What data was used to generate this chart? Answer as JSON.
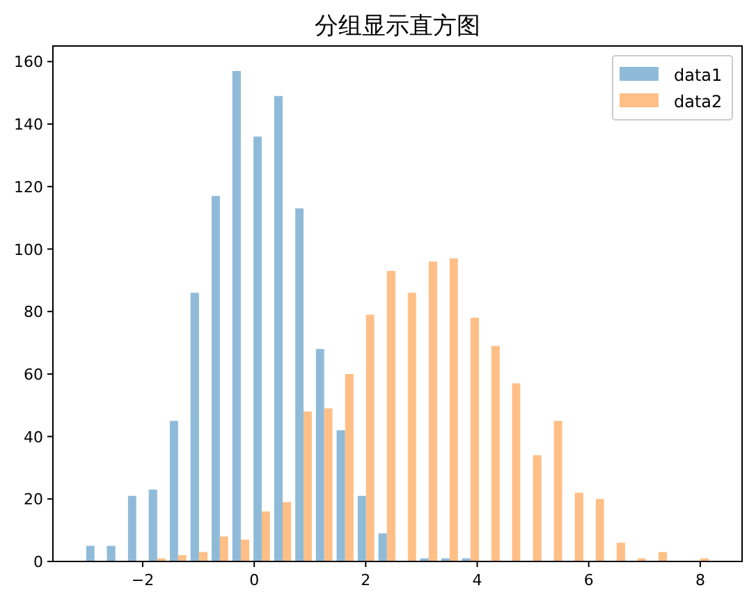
{
  "chart_data": {
    "type": "histogram",
    "title": "分组显示直方图",
    "bins": [
      -3.05,
      -2.68,
      -2.3,
      -1.93,
      -1.55,
      -1.18,
      -0.8,
      -0.43,
      -0.05,
      0.32,
      0.7,
      1.07,
      1.44,
      1.82,
      2.19,
      2.57,
      2.94,
      3.32,
      3.69,
      4.07,
      4.44,
      4.81,
      5.19,
      5.56,
      5.94,
      6.31,
      6.69,
      7.06,
      7.44,
      7.81,
      8.19
    ],
    "series": [
      {
        "name": "data1",
        "color": "#8fbbd9",
        "values": [
          5,
          5,
          21,
          23,
          45,
          86,
          117,
          157,
          136,
          149,
          113,
          68,
          42,
          21,
          9,
          0,
          1,
          1,
          1,
          0,
          0,
          0,
          0,
          0,
          0,
          0,
          0,
          0,
          0,
          0
        ]
      },
      {
        "name": "data2",
        "color": "#ffbf86",
        "values": [
          0,
          0,
          0,
          1,
          2,
          3,
          8,
          7,
          16,
          19,
          48,
          49,
          60,
          79,
          93,
          86,
          96,
          97,
          78,
          69,
          57,
          34,
          45,
          22,
          20,
          6,
          1,
          3,
          0,
          1
        ]
      }
    ],
    "xlim": [
      -3.61,
      8.75
    ],
    "xticks": [
      -2,
      0,
      2,
      4,
      6,
      8
    ],
    "ylim": [
      0,
      165
    ],
    "yticks": [
      0,
      20,
      40,
      60,
      80,
      100,
      120,
      140,
      160
    ],
    "legend": "top right",
    "grid": false
  }
}
